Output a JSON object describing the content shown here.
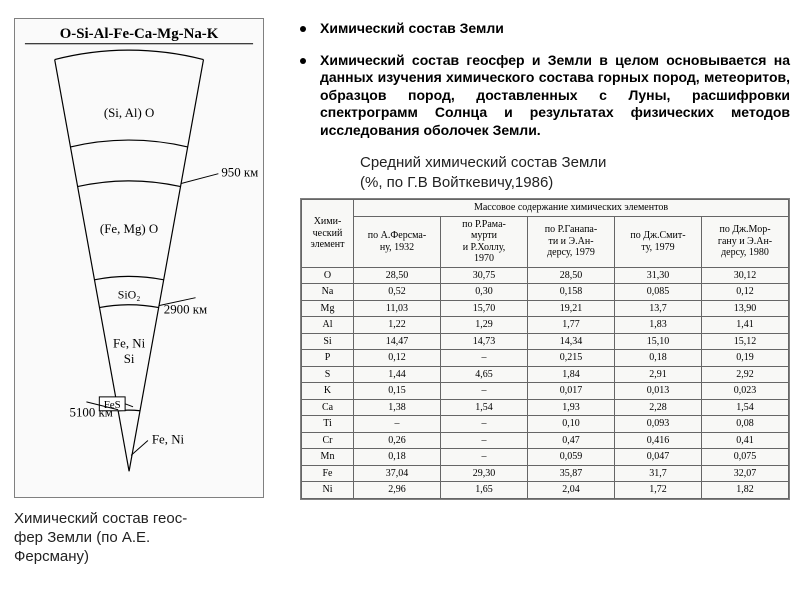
{
  "diagram": {
    "header": "O-Si-Al-Fe-Ca-Mg-Na-K",
    "layers": [
      {
        "label": "(Si, Al) O"
      },
      {
        "label": "(Fe, Mg) O"
      },
      {
        "label": "SiO₂"
      },
      {
        "label": "Fe, Ni\nSi"
      },
      {
        "label": "FeS"
      },
      {
        "label": "Fe, Ni"
      }
    ],
    "depth_labels": [
      {
        "text": "950 км"
      },
      {
        "text": "2900 км"
      },
      {
        "text": "5100 км"
      }
    ],
    "caption": "Химический состав геос-\nфер Земли (по А.Е.\nФерсману)",
    "stroke": "#000000",
    "bg": "#fafafa"
  },
  "bullets": [
    {
      "text": "Химический состав Земли",
      "bold": true
    },
    {
      "text": "Химический состав геосфер и Земли в целом основывается на данных изучения химического состава горных пород, метеоритов, образцов пород, доставленных с Луны, расшифровки спектрограмм Солнца и результатах физических методов исследования оболочек Земли.",
      "bold": true,
      "justify": true
    }
  ],
  "table": {
    "title_line1": "Средний химический состав Земли",
    "title_line2": "(%, по Г.В Войткевичу,1986)",
    "corner": "Хими-\nческий\nэлемент",
    "group_header": "Массовое содержание химических элементов",
    "columns": [
      "по А.Ферсма-\nну, 1932",
      "по Р.Рама-\nмурти\nи Р.Холлу,\n1970",
      "по Р.Ганапа-\nти и Э.Ан-\nдерсу, 1979",
      "по Дж.Смит-\nту, 1979",
      "по Дж.Мор-\nгану и Э.Ан-\nдерсу, 1980"
    ],
    "rows": [
      {
        "el": "O",
        "v": [
          "28,50",
          "30,75",
          "28,50",
          "31,30",
          "30,12"
        ]
      },
      {
        "el": "Na",
        "v": [
          "0,52",
          "0,30",
          "0,158",
          "0,085",
          "0,12"
        ]
      },
      {
        "el": "Mg",
        "v": [
          "11,03",
          "15,70",
          "19,21",
          "13,7",
          "13,90"
        ]
      },
      {
        "el": "Al",
        "v": [
          "1,22",
          "1,29",
          "1,77",
          "1,83",
          "1,41"
        ]
      },
      {
        "el": "Si",
        "v": [
          "14,47",
          "14,73",
          "14,34",
          "15,10",
          "15,12"
        ]
      },
      {
        "el": "P",
        "v": [
          "0,12",
          "–",
          "0,215",
          "0,18",
          "0,19"
        ]
      },
      {
        "el": "S",
        "v": [
          "1,44",
          "4,65",
          "1,84",
          "2,91",
          "2,92"
        ]
      },
      {
        "el": "K",
        "v": [
          "0,15",
          "–",
          "0,017",
          "0,013",
          "0,023"
        ]
      },
      {
        "el": "Ca",
        "v": [
          "1,38",
          "1,54",
          "1,93",
          "2,28",
          "1,54"
        ]
      },
      {
        "el": "Ti",
        "v": [
          "–",
          "–",
          "0,10",
          "0,093",
          "0,08"
        ]
      },
      {
        "el": "Cr",
        "v": [
          "0,26",
          "–",
          "0,47",
          "0,416",
          "0,41"
        ]
      },
      {
        "el": "Mn",
        "v": [
          "0,18",
          "–",
          "0,059",
          "0,047",
          "0,075"
        ]
      },
      {
        "el": "Fe",
        "v": [
          "37,04",
          "29,30",
          "35,87",
          "31,7",
          "32,07"
        ]
      },
      {
        "el": "Ni",
        "v": [
          "2,96",
          "1,65",
          "2,04",
          "1,72",
          "1,82"
        ]
      }
    ],
    "border_color": "#666666",
    "bg_color": "#f8f8f6",
    "font_family": "Times New Roman"
  }
}
